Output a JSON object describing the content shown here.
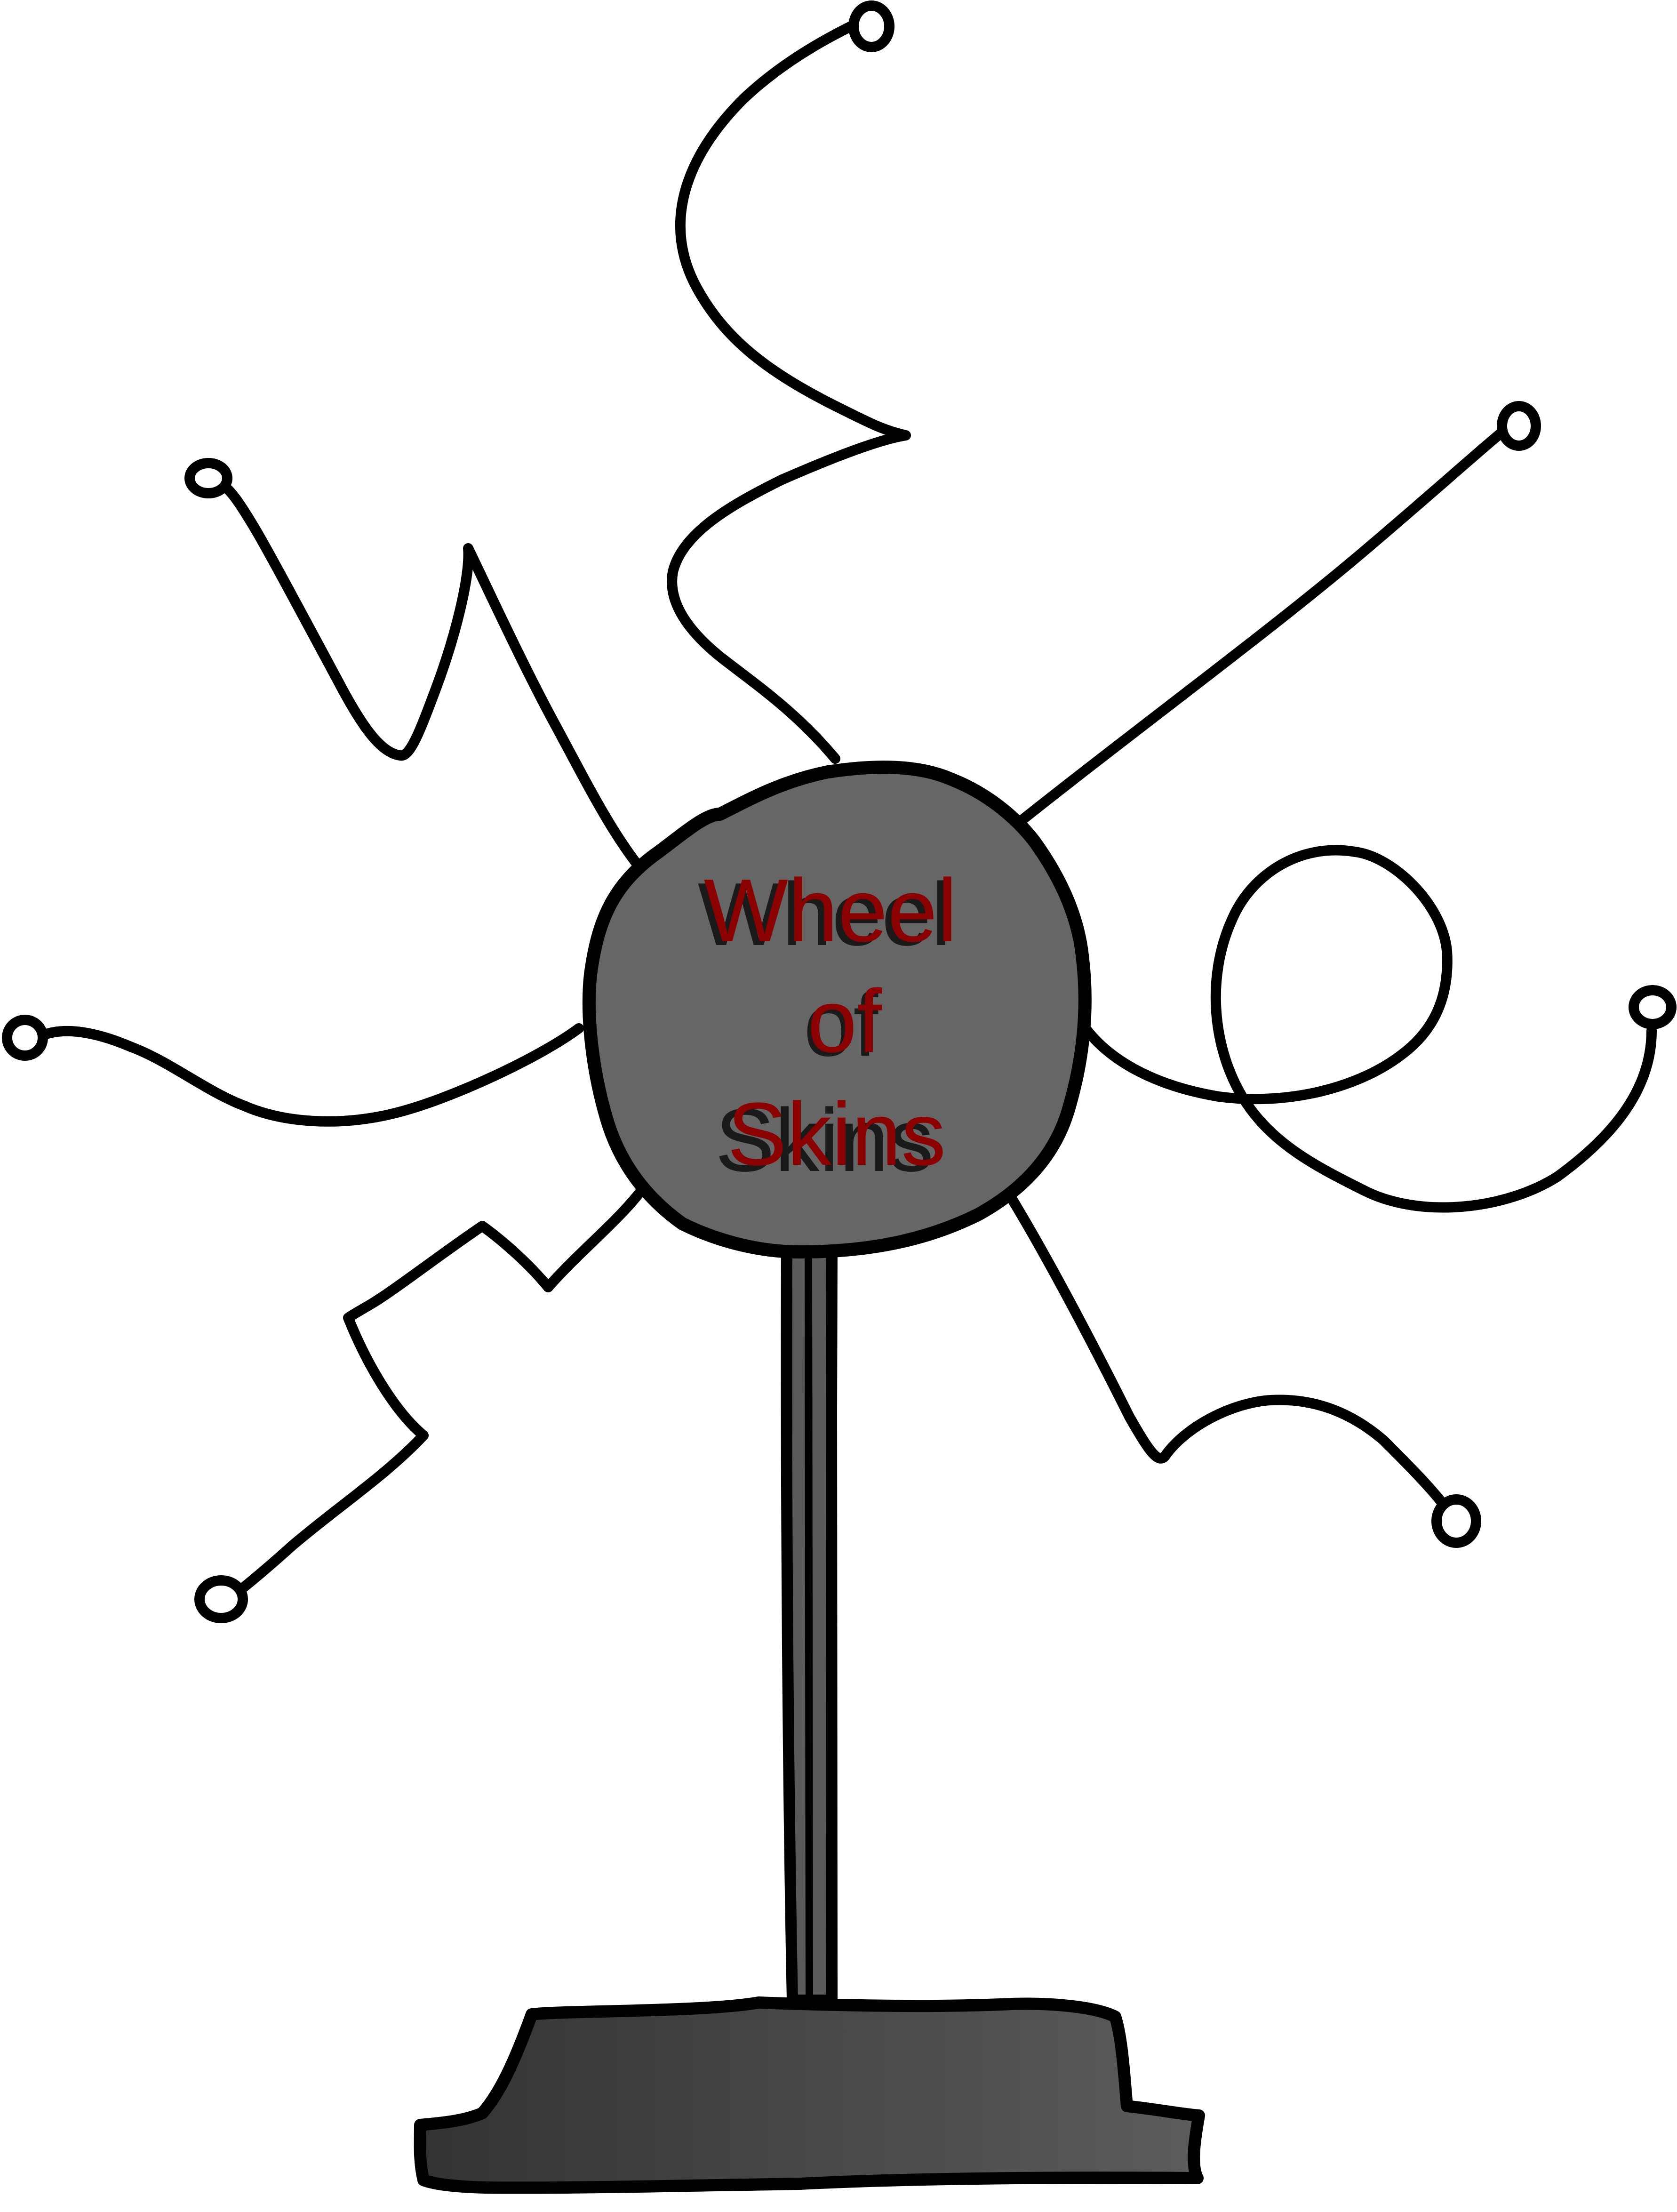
{
  "sign": {
    "line1": "Wheel",
    "line2": "of",
    "line3": "Skins"
  },
  "colors": {
    "wheel_fill": "#666666",
    "pole_fill": "#5a5a5a",
    "base_fill_dark": "#333333",
    "base_fill_light": "#5c5c5c",
    "outline": "#000000",
    "text": "#8b0000"
  }
}
